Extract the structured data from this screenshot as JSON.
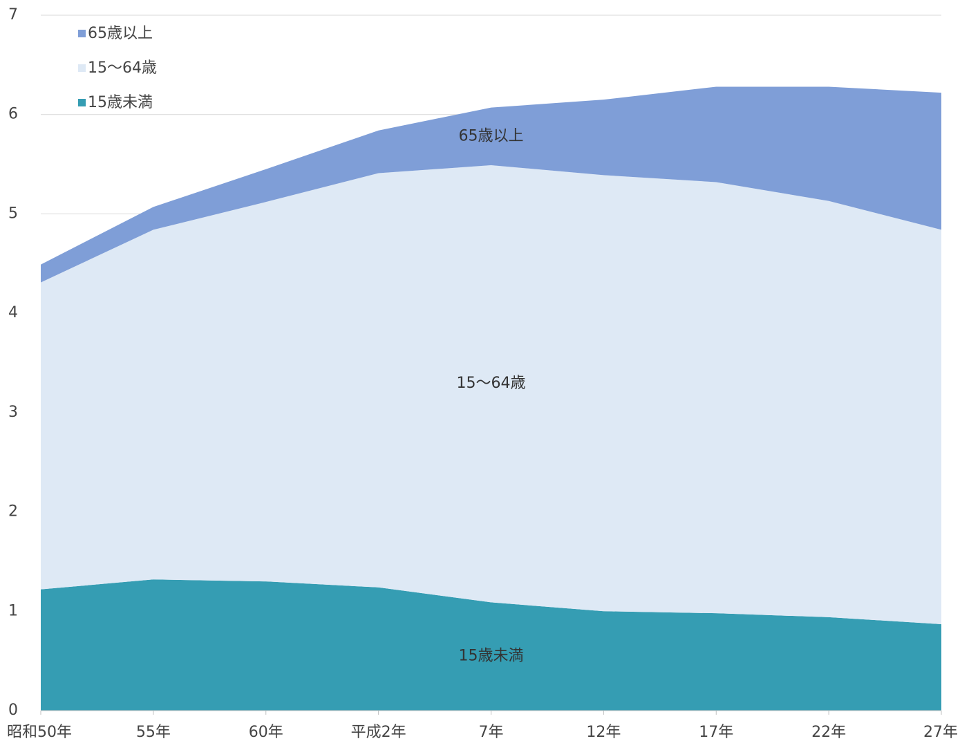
{
  "chart_data": {
    "type": "area",
    "stacked": true,
    "categories": [
      "昭和50年",
      "55年",
      "60年",
      "平成2年",
      "7年",
      "12年",
      "17年",
      "22年",
      "27年"
    ],
    "series": [
      {
        "name": "15歳未満",
        "color": "#359DB3",
        "values": [
          1.22,
          1.32,
          1.3,
          1.24,
          1.09,
          1.0,
          0.98,
          0.94,
          0.87
        ]
      },
      {
        "name": "15～64歳",
        "color": "#DEE9F5",
        "values": [
          3.09,
          3.52,
          3.82,
          4.17,
          4.4,
          4.39,
          4.34,
          4.19,
          3.97
        ]
      },
      {
        "name": "65歳以上",
        "color": "#7F9ED7",
        "values": [
          0.18,
          0.23,
          0.33,
          0.43,
          0.58,
          0.76,
          0.96,
          1.15,
          1.38
        ]
      }
    ],
    "area_labels": [
      "15歳未満",
      "15～64歳",
      "65歳以上"
    ],
    "legend": [
      "65歳以上",
      "15～64歳",
      "15歳未満"
    ],
    "legend_position": "top-left",
    "ylim": [
      0,
      7
    ],
    "yticks": [
      "0",
      "1",
      "2",
      "3",
      "4",
      "5",
      "6",
      "7"
    ],
    "grid": true,
    "title": "",
    "xlabel": "",
    "ylabel": ""
  }
}
